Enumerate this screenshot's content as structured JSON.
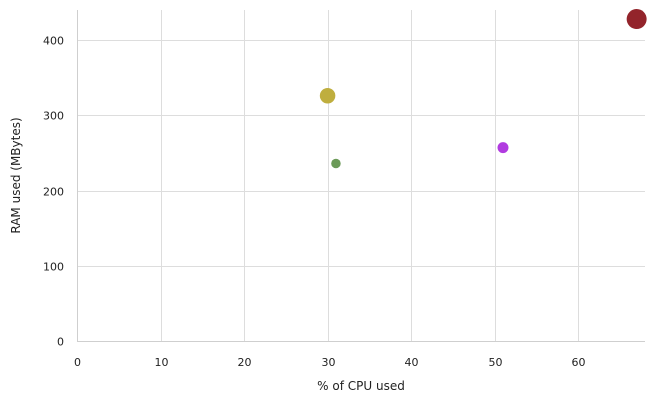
{
  "chart_data": {
    "type": "scatter",
    "xlabel": "% of CPU used",
    "ylabel": "RAM used (MBytes)",
    "xlim": [
      0,
      68
    ],
    "ylim": [
      0,
      440
    ],
    "xticks": [
      "0",
      "10",
      "20",
      "30",
      "40",
      "50",
      "60"
    ],
    "yticks": [
      "0",
      "100",
      "200",
      "300",
      "400"
    ],
    "grid": true,
    "points": [
      {
        "x": 67,
        "y": 428,
        "size": 1.0,
        "color": "#93242b"
      },
      {
        "x": 30,
        "y": 326,
        "size": 0.7,
        "color": "#bfae3e"
      },
      {
        "x": 51,
        "y": 257,
        "size": 0.4,
        "color": "#b13be0"
      },
      {
        "x": 31,
        "y": 236,
        "size": 0.3,
        "color": "#6b9a58"
      }
    ]
  }
}
